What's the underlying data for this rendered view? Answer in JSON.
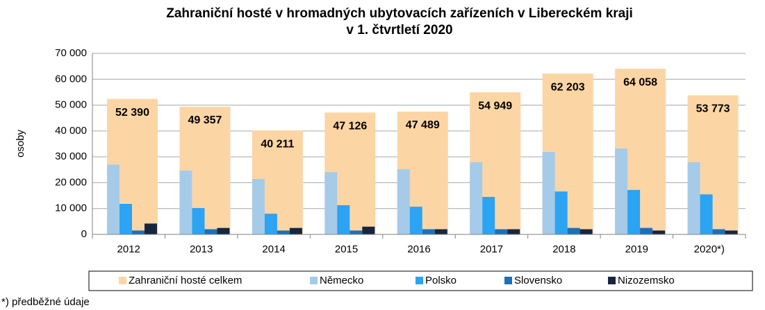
{
  "chart_data": {
    "type": "bar",
    "title": [
      "Zahraniční hosté v hromadných ubytovacích zařízeních v Libereckém kraji",
      "v 1. čtvrtletí 2020"
    ],
    "y_label": "osoby",
    "footnote": "*) předběžné údaje",
    "categories": [
      "2012",
      "2013",
      "2014",
      "2015",
      "2016",
      "2017",
      "2018",
      "2019",
      "2020*)"
    ],
    "series": [
      {
        "name": "Zahraniční hosté celkem",
        "color": "#fcd5a5",
        "values": [
          52390,
          49357,
          40211,
          47126,
          47489,
          54949,
          62203,
          64058,
          53773
        ],
        "value_labels": [
          "52 390",
          "49 357",
          "40 211",
          "47 126",
          "47 489",
          "54 949",
          "62 203",
          "64 058",
          "53 773"
        ]
      },
      {
        "name": "Německo",
        "color": "#a6cbe8",
        "values": [
          27000,
          24700,
          21400,
          24100,
          25200,
          27900,
          31900,
          33200,
          27900
        ]
      },
      {
        "name": "Polsko",
        "color": "#2ca3f3",
        "values": [
          11800,
          10200,
          8000,
          11300,
          10700,
          14500,
          16600,
          17200,
          15500
        ]
      },
      {
        "name": "Slovensko",
        "color": "#1c70b6",
        "values": [
          1500,
          2000,
          1500,
          1500,
          2000,
          2000,
          2500,
          2500,
          2000
        ]
      },
      {
        "name": "Nizozemsko",
        "color": "#172640",
        "values": [
          4200,
          2500,
          2500,
          3000,
          2000,
          2000,
          2000,
          1500,
          1500
        ]
      }
    ],
    "ylim": [
      0,
      70000
    ],
    "yticks": [
      {
        "value": 0,
        "label": "0"
      },
      {
        "value": 10000,
        "label": "10 000"
      },
      {
        "value": 20000,
        "label": "20 000"
      },
      {
        "value": 30000,
        "label": "30 000"
      },
      {
        "value": 40000,
        "label": "40 000"
      },
      {
        "value": 50000,
        "label": "50 000"
      },
      {
        "value": 60000,
        "label": "60 000"
      },
      {
        "value": 70000,
        "label": "70 000"
      }
    ],
    "grid": true,
    "legend": "bottom"
  }
}
